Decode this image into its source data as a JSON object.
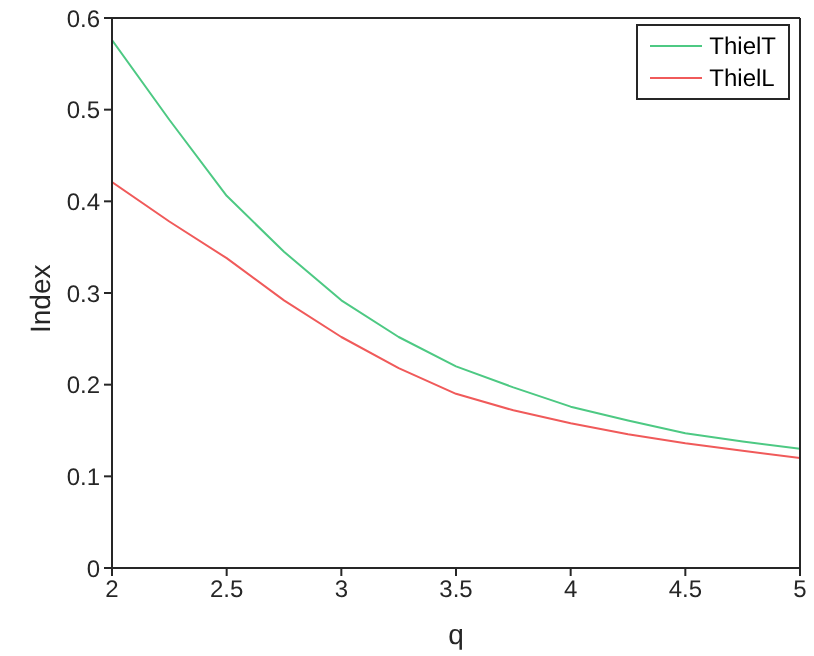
{
  "chart_data": {
    "type": "line",
    "xlabel": "q",
    "ylabel": "Index",
    "x": [
      2,
      2.25,
      2.5,
      2.75,
      3,
      3.25,
      3.5,
      3.75,
      4,
      4.25,
      4.5,
      4.75,
      5
    ],
    "series": [
      {
        "name": "ThielT",
        "color": "#4dc983",
        "values": [
          0.576,
          0.489,
          0.406,
          0.345,
          0.292,
          0.252,
          0.22,
          0.197,
          0.176,
          0.161,
          0.147,
          0.138,
          0.13
        ]
      },
      {
        "name": "ThielL",
        "color": "#f05a5a",
        "values": [
          0.421,
          0.378,
          0.338,
          0.292,
          0.252,
          0.218,
          0.19,
          0.172,
          0.158,
          0.146,
          0.136,
          0.128,
          0.12
        ]
      }
    ],
    "xlim": [
      2,
      5
    ],
    "xticks": [
      2,
      2.5,
      3,
      3.5,
      4,
      4.5,
      5
    ],
    "ylim": [
      0,
      0.6
    ],
    "yticks": [
      0,
      0.1,
      0.2,
      0.3,
      0.4,
      0.5,
      0.6
    ],
    "grid": false,
    "legend": "top right",
    "marker": "none",
    "line_style": "solid"
  }
}
